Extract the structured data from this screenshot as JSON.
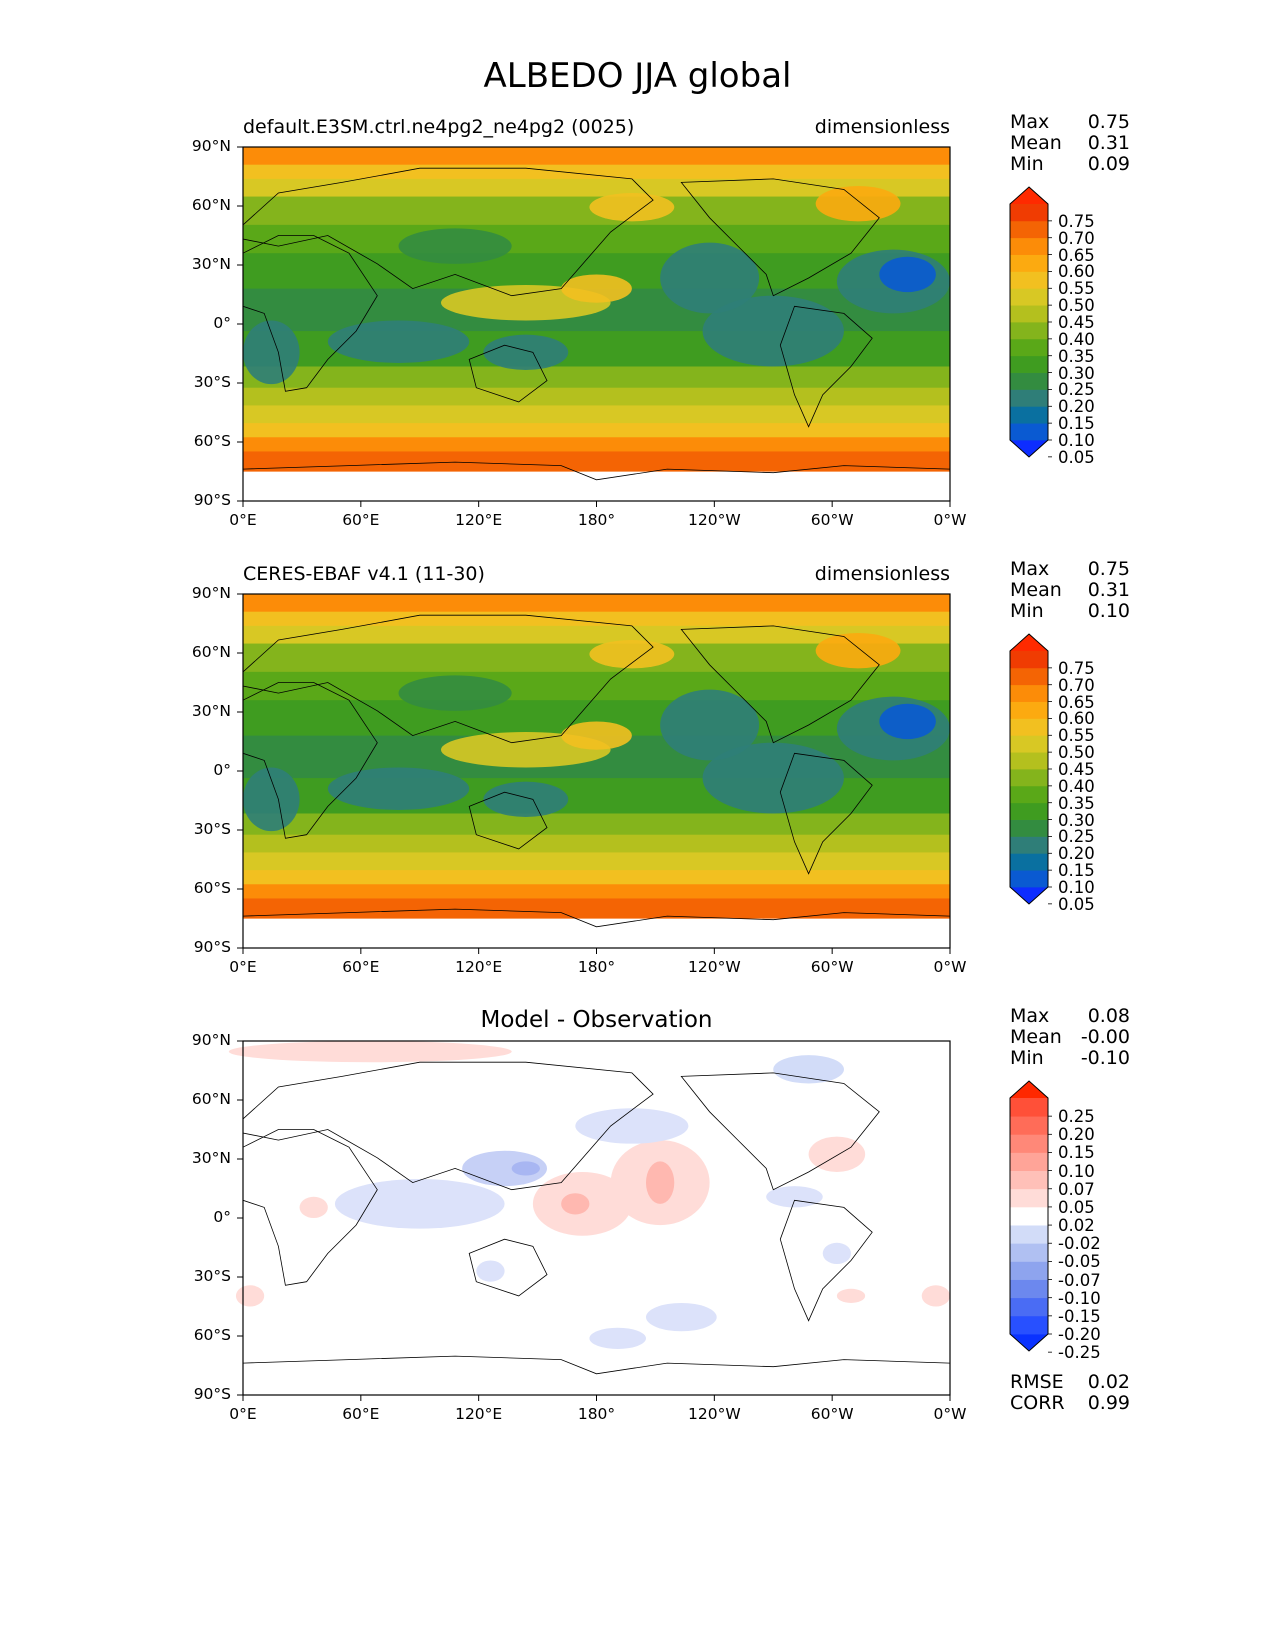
{
  "title": "ALBEDO JJA global",
  "lat_labels": [
    "90°N",
    "60°N",
    "30°N",
    "0°",
    "30°S",
    "60°S",
    "90°S"
  ],
  "lon_labels": [
    "0°E",
    "60°E",
    "120°E",
    "180°",
    "120°W",
    "60°W",
    "0°W"
  ],
  "panels": [
    {
      "name": "model",
      "title_left": "default.E3SM.ctrl.ne4pg2_ne4pg2 (0025)",
      "title_right": "dimensionless",
      "title_center": "",
      "stats": [
        {
          "label": "Max",
          "value": "0.75"
        },
        {
          "label": "Mean",
          "value": "0.31"
        },
        {
          "label": "Min",
          "value": "0.09"
        }
      ],
      "colorbar": {
        "ticks": [
          "0.75",
          "0.70",
          "0.65",
          "0.60",
          "0.55",
          "0.50",
          "0.45",
          "0.40",
          "0.35",
          "0.30",
          "0.25",
          "0.20",
          "0.15",
          "0.10",
          "0.05"
        ],
        "colors": [
          "#0d2dff",
          "#0a5ad2",
          "#0a70a0",
          "#2f7e78",
          "#338c40",
          "#3f9c20",
          "#5aa818",
          "#84b41c",
          "#b4c01e",
          "#d8c824",
          "#f2c020",
          "#fcaa10",
          "#fc8c08",
          "#f46404",
          "#f03c02",
          "#ff2a00"
        ]
      }
    },
    {
      "name": "observation",
      "title_left": "CERES-EBAF v4.1 (11-30)",
      "title_right": "dimensionless",
      "title_center": "",
      "stats": [
        {
          "label": "Max",
          "value": "0.75"
        },
        {
          "label": "Mean",
          "value": "0.31"
        },
        {
          "label": "Min",
          "value": "0.10"
        }
      ],
      "colorbar": {
        "ticks": [
          "0.75",
          "0.70",
          "0.65",
          "0.60",
          "0.55",
          "0.50",
          "0.45",
          "0.40",
          "0.35",
          "0.30",
          "0.25",
          "0.20",
          "0.15",
          "0.10",
          "0.05"
        ],
        "colors": [
          "#0d2dff",
          "#0a5ad2",
          "#0a70a0",
          "#2f7e78",
          "#338c40",
          "#3f9c20",
          "#5aa818",
          "#84b41c",
          "#b4c01e",
          "#d8c824",
          "#f2c020",
          "#fcaa10",
          "#fc8c08",
          "#f46404",
          "#f03c02",
          "#ff2a00"
        ]
      }
    },
    {
      "name": "difference",
      "title_left": "",
      "title_right": "",
      "title_center": "Model - Observation",
      "stats": [
        {
          "label": "Max",
          "value": "0.08"
        },
        {
          "label": "Mean",
          "value": "-0.00"
        },
        {
          "label": "Min",
          "value": "-0.10"
        }
      ],
      "extra_stats": [
        {
          "label": "RMSE",
          "value": "0.02"
        },
        {
          "label": "CORR",
          "value": "0.99"
        }
      ],
      "colorbar": {
        "ticks": [
          "0.25",
          "0.20",
          "0.15",
          "0.10",
          "0.07",
          "0.05",
          "0.02",
          "-0.02",
          "-0.05",
          "-0.07",
          "-0.10",
          "-0.15",
          "-0.20",
          "-0.25"
        ],
        "colors": [
          "#0a32ff",
          "#2850ff",
          "#4a6cf4",
          "#6c88ee",
          "#8ea4ee",
          "#b0c0f2",
          "#d2dcf8",
          "#ffffff",
          "#ffdcd8",
          "#ffc0b8",
          "#ffa498",
          "#ff8878",
          "#ff6c58",
          "#ff5038",
          "#ff2800"
        ]
      }
    }
  ]
}
